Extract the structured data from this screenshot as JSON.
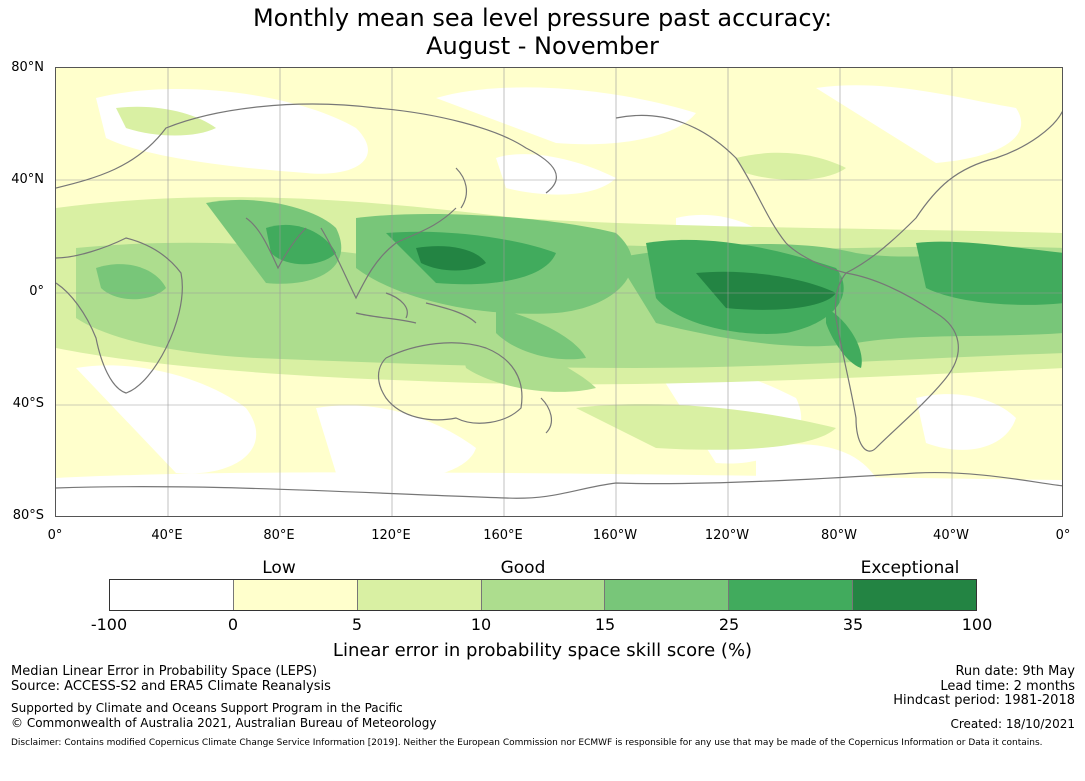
{
  "title_line1": "Monthly mean sea level pressure past accuracy:",
  "title_line2": "August - November",
  "map": {
    "lat_labels": [
      "80°N",
      "40°N",
      "0°",
      "40°S",
      "80°S"
    ],
    "lon_labels": [
      "0°",
      "40°E",
      "80°E",
      "120°E",
      "160°E",
      "160°W",
      "120°W",
      "80°W",
      "40°W",
      "0°"
    ],
    "land_outline_color": "#777777",
    "grid_color": "#999999"
  },
  "colorbar": {
    "categories": [
      "Low",
      "Good",
      "Exceptional"
    ],
    "ticks": [
      "-100",
      "0",
      "5",
      "10",
      "15",
      "25",
      "35",
      "100"
    ],
    "colors": [
      "#ffffff",
      "#ffffcc",
      "#d9f0a3",
      "#addd8e",
      "#78c679",
      "#41ab5d",
      "#238443"
    ],
    "title": "Linear error in probability space skill score (%)"
  },
  "footer": {
    "left_line1": "Median Linear Error in Probability Space (LEPS)",
    "left_line2": "Source: ACCESS-S2 and ERA5 Climate Reanalysis",
    "left_line3": "Supported by Climate and Oceans Support Program in the Pacific",
    "left_line4": "© Commonwealth of Australia 2021, Australian Bureau of Meteorology",
    "right_line1": "Run date: 9th May",
    "right_line2": "Lead time: 2 months",
    "right_line3": "Hindcast period: 1981-2018",
    "right_line4": "Created: 18/10/2021",
    "disclaimer": "Disclaimer: Contains modified Copernicus Climate Change Service Information [2019]. Neither the European Commission nor ECMWF is responsible for any use that may be made of the Copernicus Information or Data it contains."
  }
}
